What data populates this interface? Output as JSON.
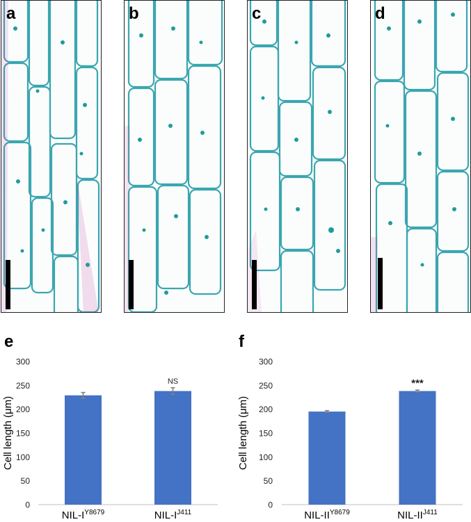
{
  "panels": [
    {
      "letter": "a",
      "scale_bar_label": ""
    },
    {
      "letter": "b",
      "scale_bar_label": ""
    },
    {
      "letter": "c",
      "scale_bar_label": ""
    },
    {
      "letter": "d",
      "scale_bar_label": ""
    }
  ],
  "colors": {
    "bar": "#4472c4",
    "cell_wall": "#3aa6b0",
    "nucleus": "#1f9c9a",
    "pink_stain": "#c24aa5",
    "frame": "#222222",
    "error_bar": "#808080"
  },
  "chart_data": [
    {
      "panel_letter": "e",
      "type": "bar",
      "categories": [
        {
          "base": "NIL-I",
          "sup": "Y8679"
        },
        {
          "base": "NIL-I",
          "sup": "J411"
        }
      ],
      "values": [
        229,
        238
      ],
      "errors": [
        6,
        7
      ],
      "annotations": [
        "",
        "NS"
      ],
      "ylabel": "Cell length (μm)",
      "ylim": [
        0,
        300
      ],
      "yticks": [
        0,
        50,
        100,
        150,
        200,
        250,
        300
      ],
      "grid": false,
      "legend": false
    },
    {
      "panel_letter": "f",
      "type": "bar",
      "categories": [
        {
          "base": "NIL-II",
          "sup": "Y8679"
        },
        {
          "base": "NIL-II",
          "sup": "J411"
        }
      ],
      "values": [
        195,
        238
      ],
      "errors": [
        2,
        2
      ],
      "annotations": [
        "",
        "***"
      ],
      "ylabel": "Cell length (μm)",
      "ylim": [
        0,
        300
      ],
      "yticks": [
        0,
        50,
        100,
        150,
        200,
        250,
        300
      ],
      "grid": false,
      "legend": false
    }
  ]
}
